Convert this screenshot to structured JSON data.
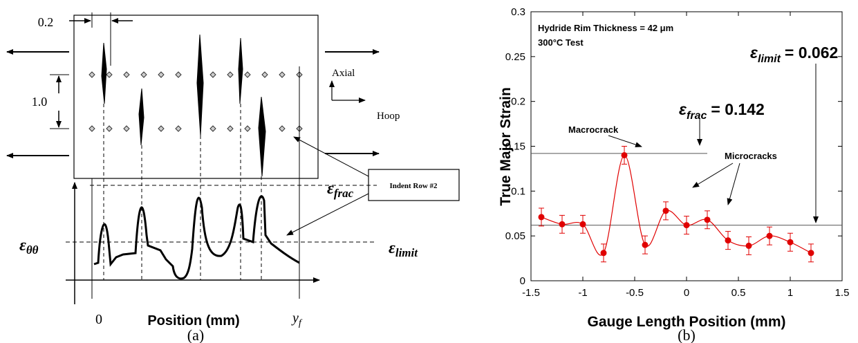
{
  "diagram": {
    "spacing_label": "0.2",
    "row_gap_label": "1.0",
    "axial": "Axial",
    "hoop": "Hoop",
    "indent_label": "Indent Row #2",
    "epsilon_frac": {
      "symbol": "ε",
      "sub": "frac"
    },
    "epsilon_theta": {
      "symbol": "ε",
      "sub": "θθ"
    },
    "epsilon_limit": {
      "symbol": "ε",
      "sub": "limit"
    },
    "origin_label": "0",
    "x_label": "Position (mm)",
    "end_label": {
      "symbol": "y",
      "sub": "f"
    },
    "caption": "(a)"
  },
  "chart_data": {
    "type": "line",
    "caption": "(b)",
    "x_label": "Gauge Length Position (mm)",
    "y_label": "True Major Strain",
    "x": [
      -1.4,
      -1.2,
      -1.0,
      -0.8,
      -0.6,
      -0.4,
      -0.2,
      0,
      0.2,
      0.4,
      0.6,
      0.8,
      1.0,
      1.2
    ],
    "series": [
      {
        "color": "#e00000",
        "values": [
          0.071,
          0.063,
          0.063,
          0.031,
          0.14,
          0.04,
          0.078,
          0.062,
          0.068,
          0.045,
          0.039,
          0.05,
          0.043,
          0.031
        ],
        "errors": [
          0.01,
          0.01,
          0.01,
          0.01,
          0.01,
          0.01,
          0.01,
          0.01,
          0.01,
          0.01,
          0.01,
          0.01,
          0.01,
          0.01
        ]
      }
    ],
    "xlim": [
      -1.5,
      1.5
    ],
    "xticks": [
      -1.5,
      -1,
      -0.5,
      0,
      0.5,
      1,
      1.5
    ],
    "ylim": [
      0,
      0.3
    ],
    "yticks": [
      0,
      0.05,
      0.1,
      0.15,
      0.2,
      0.25,
      0.3
    ],
    "reference_lines": [
      {
        "value": 0.142,
        "x_range": [
          -1.5,
          0.2
        ],
        "symbol": "ε",
        "sub": "frac",
        "label": "= 0.142"
      },
      {
        "value": 0.062,
        "x_range": [
          -1.5,
          1.5
        ],
        "symbol": "ε",
        "sub": "limit",
        "label": "= 0.062"
      }
    ],
    "annotations": [
      "Hydride Rim Thickness = 42  μm",
      "300°C Test",
      "Macrocrack",
      "Microcracks"
    ]
  }
}
